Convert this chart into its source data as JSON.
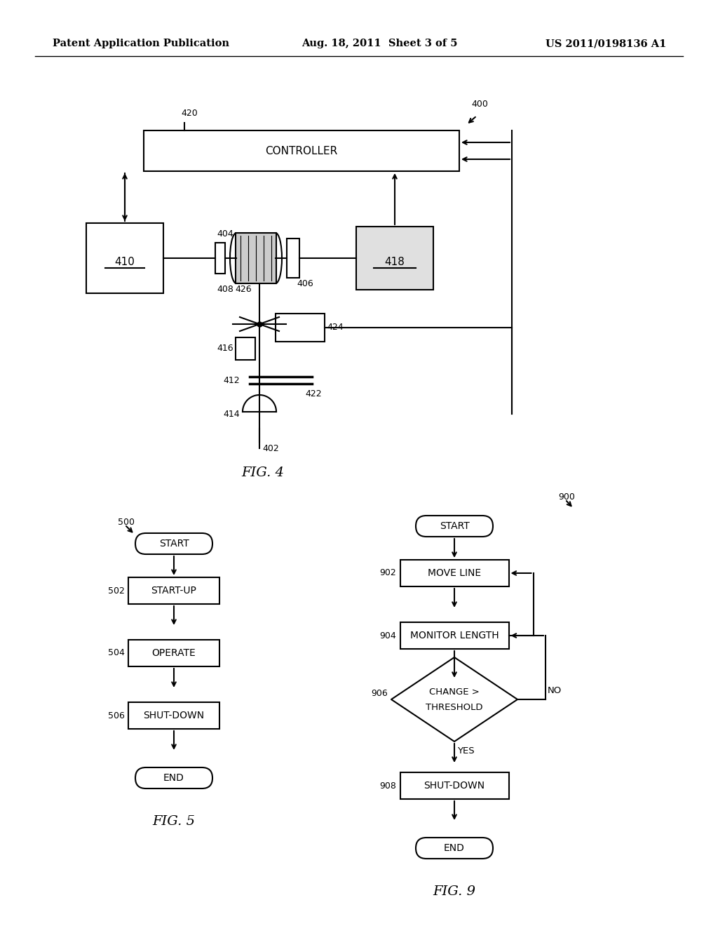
{
  "bg_color": "#ffffff",
  "header_left": "Patent Application Publication",
  "header_mid": "Aug. 18, 2011  Sheet 3 of 5",
  "header_right": "US 2011/0198136 A1",
  "fig4_label": "FIG. 4",
  "fig5_label": "FIG. 5",
  "fig9_label": "FIG. 9",
  "fig4_ref": "400",
  "fig4_420": "420",
  "fig4_controller": "CONTROLLER",
  "fig4_410": "410",
  "fig4_418": "418",
  "fig4_404": "404",
  "fig4_406": "406",
  "fig4_408": "408",
  "fig4_426": "426",
  "fig4_416": "416",
  "fig4_424": "424",
  "fig4_412": "412",
  "fig4_414": "414",
  "fig4_422": "422",
  "fig4_402": "402",
  "fig5_500": "500",
  "fig5_start": "START",
  "fig5_502": "502",
  "fig5_startup": "START-UP",
  "fig5_504": "504",
  "fig5_operate": "OPERATE",
  "fig5_506": "506",
  "fig5_shutdown": "SHUT-DOWN",
  "fig5_end": "END",
  "fig9_900": "900",
  "fig9_start": "START",
  "fig9_902": "902",
  "fig9_moveline": "MOVE LINE",
  "fig9_904": "904",
  "fig9_monitor": "MONITOR LENGTH",
  "fig9_906": "906",
  "fig9_no": "NO",
  "fig9_908": "908",
  "fig9_shutdown": "SHUT-DOWN",
  "fig9_end": "END",
  "fig9_yes": "YES"
}
